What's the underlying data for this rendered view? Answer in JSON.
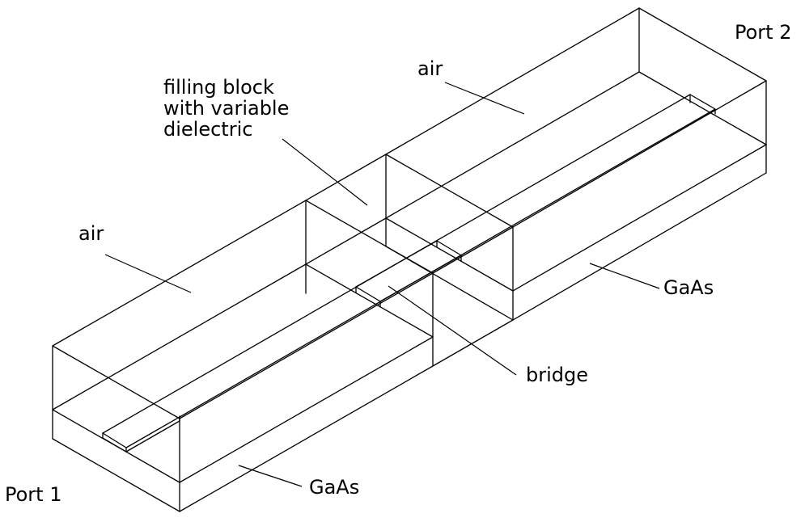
{
  "labels": {
    "port1": "Port 1",
    "port2": "Port 2",
    "air_left": "air",
    "air_right": "air",
    "filling_line1": "filling block",
    "filling_line2": "with variable",
    "filling_line3": "dielectric",
    "gaas_bottom": "GaAs",
    "gaas_right": "GaAs",
    "bridge": "bridge"
  },
  "colors": {
    "line": "#000000",
    "background": "#ffffff"
  }
}
